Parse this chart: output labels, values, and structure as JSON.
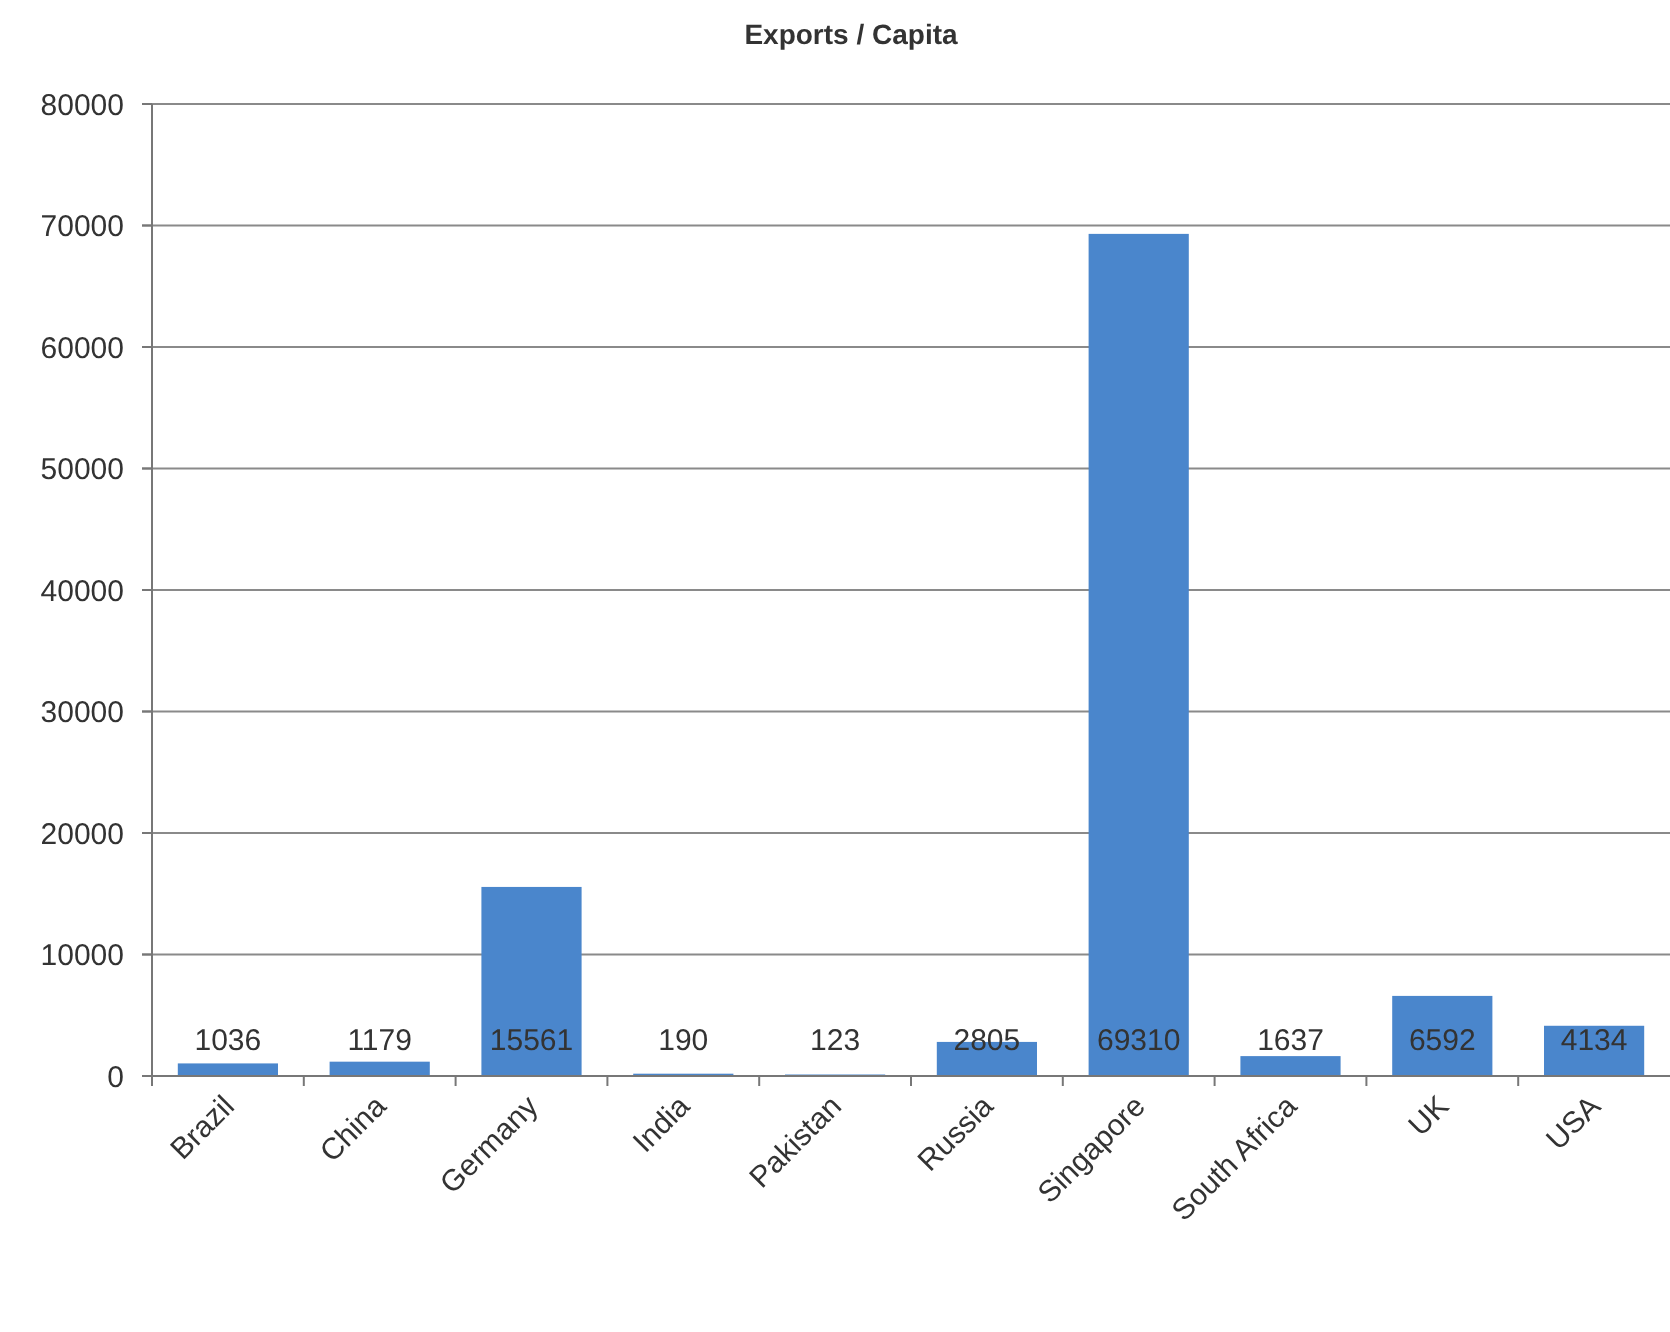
{
  "chart_data": {
    "type": "bar",
    "title": "Exports / Capita",
    "categories": [
      "Brazil",
      "China",
      "Germany",
      "India",
      "Pakistan",
      "Russia",
      "Singapore",
      "South Africa",
      "UK",
      "USA"
    ],
    "values": [
      1036,
      1179,
      15561,
      190,
      123,
      2805,
      69310,
      1637,
      6592,
      4134
    ],
    "color": "#4a86cc",
    "ylim": [
      0,
      80000
    ],
    "yticks": [
      0,
      10000,
      20000,
      30000,
      40000,
      50000,
      60000,
      70000,
      80000
    ],
    "grid": "y",
    "data_labels": true
  }
}
